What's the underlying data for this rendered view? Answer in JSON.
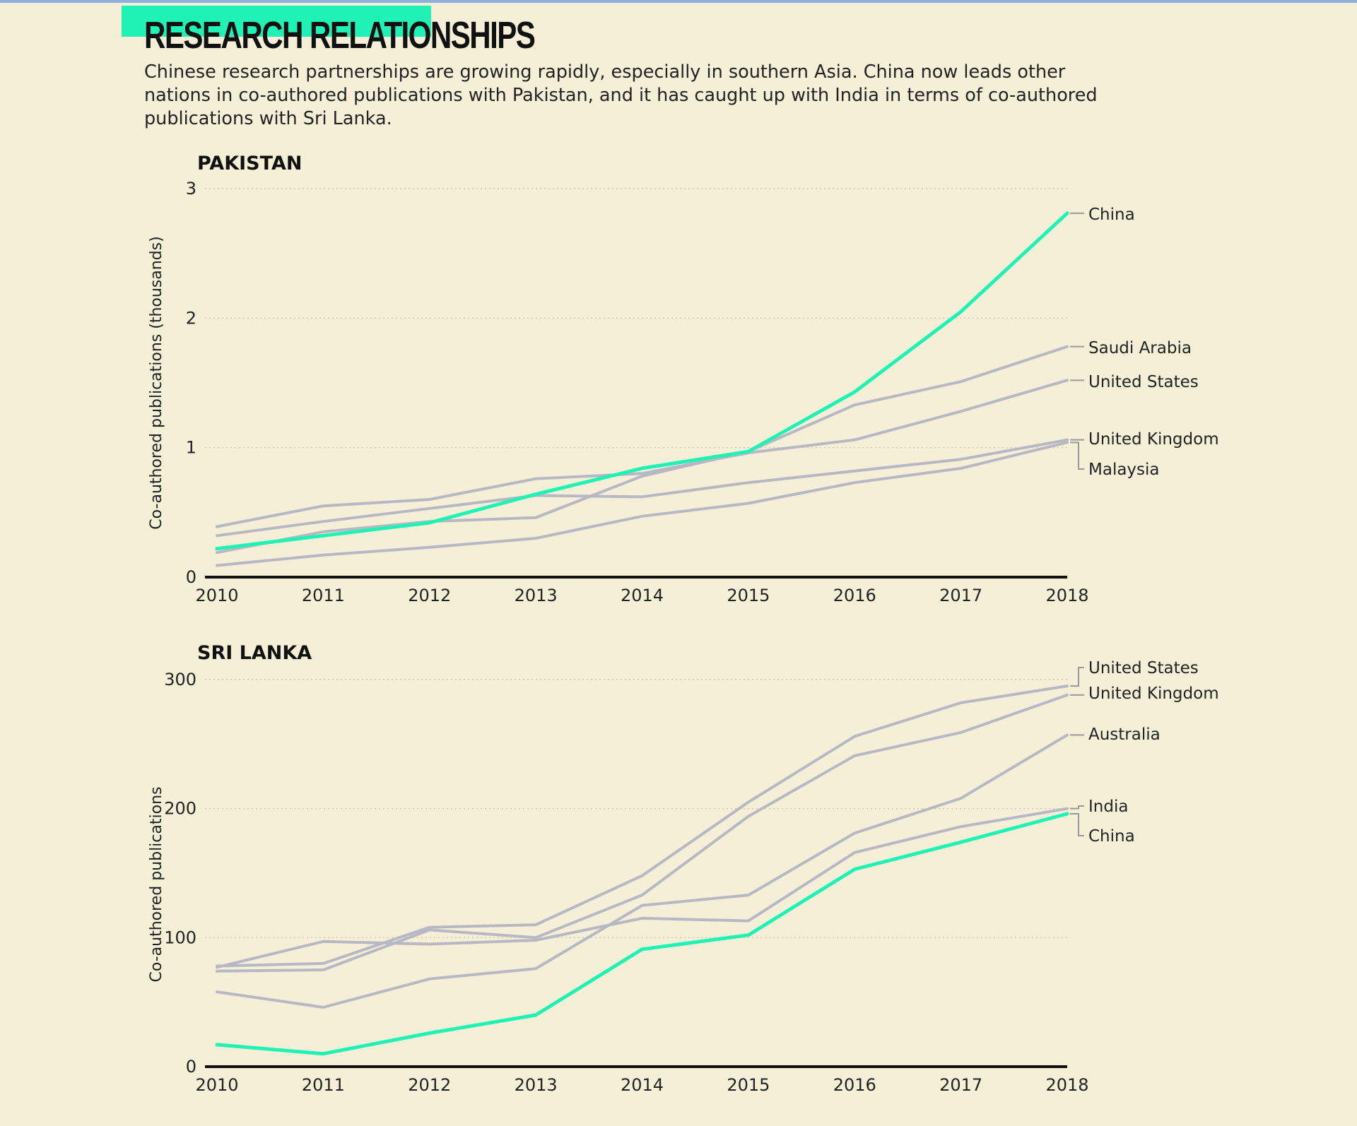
{
  "title": "RESEARCH RELATIONSHIPS",
  "subtitle": "Chinese research partnerships are growing rapidly, especially in southern Asia. China now leads other nations in co-authored publications with Pakistan, and it has caught up with India in terms of co-authored publications with Sri Lanka.",
  "colors": {
    "highlight": "#1ff2b4",
    "other": "#b8b8c4",
    "background": "#f5efd8",
    "accent_bar": "#1ff2b4"
  },
  "chart_data": [
    {
      "type": "line",
      "title": "PAKISTAN",
      "ylabel": "Co-authored publications (thousands)",
      "x": [
        "2010",
        "2011",
        "2012",
        "2013",
        "2014",
        "2015",
        "2016",
        "2017",
        "2018"
      ],
      "ylim": [
        0,
        3
      ],
      "yticks": [
        "0",
        "1",
        "2",
        "3"
      ],
      "grid": true,
      "series": [
        {
          "name": "Saudi Arabia",
          "values": [
            0.19,
            0.35,
            0.43,
            0.46,
            0.78,
            0.97,
            1.33,
            1.51,
            1.78
          ]
        },
        {
          "name": "United States",
          "values": [
            0.39,
            0.55,
            0.6,
            0.76,
            0.8,
            0.96,
            1.06,
            1.28,
            1.52
          ]
        },
        {
          "name": "United Kingdom",
          "values": [
            0.32,
            0.43,
            0.53,
            0.63,
            0.62,
            0.73,
            0.82,
            0.91,
            1.06
          ]
        },
        {
          "name": "Malaysia",
          "values": [
            0.09,
            0.17,
            0.23,
            0.3,
            0.47,
            0.57,
            0.73,
            0.84,
            1.04
          ]
        },
        {
          "name": "China",
          "values": [
            0.22,
            0.32,
            0.42,
            0.64,
            0.84,
            0.97,
            1.43,
            2.05,
            2.81
          ],
          "highlight": true
        }
      ]
    },
    {
      "type": "line",
      "title": "SRI LANKA",
      "ylabel": "Co-authored publications",
      "x": [
        "2010",
        "2011",
        "2012",
        "2013",
        "2014",
        "2015",
        "2016",
        "2017",
        "2018"
      ],
      "ylim": [
        0,
        300
      ],
      "yticks": [
        "0",
        "100",
        "200",
        "300"
      ],
      "grid": true,
      "series": [
        {
          "name": "United States",
          "values": [
            78,
            80,
            108,
            110,
            148,
            205,
            256,
            282,
            295
          ]
        },
        {
          "name": "United Kingdom",
          "values": [
            74,
            75,
            106,
            100,
            133,
            194,
            241,
            259,
            288
          ]
        },
        {
          "name": "Australia",
          "values": [
            58,
            46,
            68,
            76,
            125,
            133,
            181,
            208,
            257
          ]
        },
        {
          "name": "India",
          "values": [
            77,
            97,
            95,
            98,
            115,
            113,
            166,
            186,
            200
          ]
        },
        {
          "name": "China",
          "values": [
            17,
            10,
            26,
            40,
            91,
            102,
            153,
            174,
            196
          ],
          "highlight": true
        }
      ]
    }
  ]
}
